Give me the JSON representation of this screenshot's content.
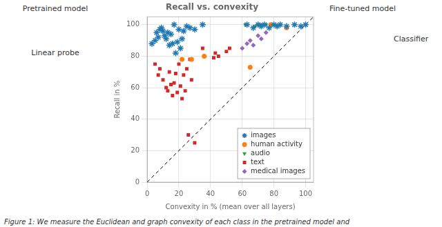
{
  "chart_data": {
    "type": "scatter",
    "title": "Recall vs. convexity",
    "xlabel": "Convexity in % (mean over all layers)",
    "ylabel": "Recall in %",
    "xlim": [
      0,
      105
    ],
    "ylim": [
      0,
      105
    ],
    "xticks": [
      0,
      20,
      40,
      60,
      80,
      100
    ],
    "yticks": [
      0,
      20,
      40,
      60,
      80,
      100
    ],
    "grid": true,
    "legend": "lower right",
    "series": [
      {
        "name": "images",
        "color": "#1f77b4",
        "marker": "star",
        "values": [
          [
            3,
            88
          ],
          [
            5,
            90
          ],
          [
            6,
            95
          ],
          [
            7,
            92
          ],
          [
            8,
            97
          ],
          [
            9,
            98
          ],
          [
            10,
            96
          ],
          [
            11,
            93
          ],
          [
            12,
            91
          ],
          [
            13,
            95
          ],
          [
            14,
            87
          ],
          [
            15,
            94
          ],
          [
            16,
            88
          ],
          [
            17,
            100
          ],
          [
            18,
            82
          ],
          [
            19,
            89
          ],
          [
            20,
            97
          ],
          [
            21,
            85
          ],
          [
            22,
            91
          ],
          [
            23,
            96
          ],
          [
            25,
            99
          ],
          [
            27,
            98
          ],
          [
            30,
            97
          ],
          [
            35,
            100
          ],
          [
            63,
            100
          ],
          [
            67,
            98
          ],
          [
            70,
            100
          ],
          [
            72,
            99
          ],
          [
            74,
            100
          ],
          [
            77,
            98
          ],
          [
            80,
            100
          ],
          [
            82,
            99
          ],
          [
            84,
            100
          ],
          [
            88,
            99
          ],
          [
            93,
            100
          ],
          [
            97,
            99
          ],
          [
            100,
            100
          ]
        ]
      },
      {
        "name": "human activity",
        "color": "#ff7f0e",
        "marker": "circle",
        "values": [
          [
            22,
            78
          ],
          [
            28,
            78
          ],
          [
            36,
            80
          ],
          [
            65,
            73
          ],
          [
            78,
            100
          ],
          [
            88,
            98
          ]
        ]
      },
      {
        "name": "audio",
        "color": "#2ca02c",
        "marker": "triangle_down",
        "values": [
          [
            62,
            100
          ],
          [
            68,
            99
          ],
          [
            70,
            100
          ],
          [
            72,
            100
          ],
          [
            75,
            100
          ],
          [
            78,
            100
          ],
          [
            80,
            100
          ]
        ]
      },
      {
        "name": "text",
        "color": "#d62728",
        "marker": "square",
        "values": [
          [
            5,
            75
          ],
          [
            7,
            68
          ],
          [
            8,
            72
          ],
          [
            10,
            65
          ],
          [
            12,
            60
          ],
          [
            13,
            58
          ],
          [
            14,
            70
          ],
          [
            15,
            62
          ],
          [
            16,
            55
          ],
          [
            17,
            63
          ],
          [
            18,
            69
          ],
          [
            19,
            57
          ],
          [
            20,
            75
          ],
          [
            21,
            61
          ],
          [
            22,
            53
          ],
          [
            23,
            68
          ],
          [
            24,
            58
          ],
          [
            25,
            72
          ],
          [
            26,
            30
          ],
          [
            27,
            78
          ],
          [
            28,
            65
          ],
          [
            30,
            25
          ],
          [
            35,
            85
          ],
          [
            42,
            79
          ],
          [
            43,
            82
          ],
          [
            45,
            80
          ],
          [
            50,
            83
          ],
          [
            52,
            85
          ]
        ]
      },
      {
        "name": "medical images",
        "color": "#9467bd",
        "marker": "diamond",
        "values": [
          [
            60,
            85
          ],
          [
            63,
            88
          ],
          [
            65,
            90
          ],
          [
            67,
            87
          ],
          [
            70,
            93
          ],
          [
            72,
            91
          ],
          [
            75,
            95
          ]
        ]
      }
    ],
    "annotations": [
      "Pretrained model",
      "Linear probe",
      "Fine-tuned model",
      "Classifier"
    ],
    "caption": "Figure 1: We measure the Euclidean and graph convexity of each class in the pretrained model and"
  }
}
